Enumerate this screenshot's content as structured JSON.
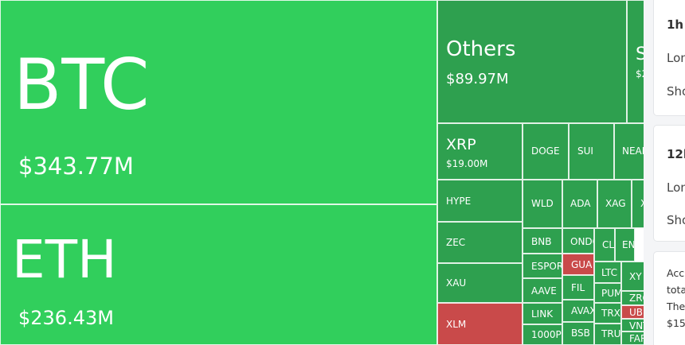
{
  "tiles": {
    "btc": {
      "symbol": "BTC",
      "value": "$343.77M"
    },
    "eth": {
      "symbol": "ETH",
      "value": "$236.43M"
    },
    "others": {
      "symbol": "Others",
      "value": "$89.97M"
    },
    "sol": {
      "symbol": "S",
      "value": "$2"
    },
    "xrp": {
      "symbol": "XRP",
      "value": "$19.00M"
    },
    "doge": {
      "symbol": "DOGE"
    },
    "sui": {
      "symbol": "SUI"
    },
    "near": {
      "symbol": "NEAR"
    },
    "hype": {
      "symbol": "HYPE"
    },
    "zec": {
      "symbol": "ZEC"
    },
    "xau": {
      "symbol": "XAU"
    },
    "xlm": {
      "symbol": "XLM"
    },
    "wld": {
      "symbol": "WLD"
    },
    "ada": {
      "symbol": "ADA"
    },
    "xag": {
      "symbol": "XAG"
    },
    "x_partial": {
      "symbol": "X"
    },
    "bnb": {
      "symbol": "BNB"
    },
    "ondo": {
      "symbol": "ONDO"
    },
    "cl": {
      "symbol": "CL"
    },
    "en": {
      "symbol": "EN"
    },
    "espor": {
      "symbol": "ESPOR"
    },
    "gua": {
      "symbol": "GUA"
    },
    "aave": {
      "symbol": "AAVE"
    },
    "fil": {
      "symbol": "FIL"
    },
    "ltc": {
      "symbol": "LTC"
    },
    "xy": {
      "symbol": "XY"
    },
    "pum": {
      "symbol": "PUM"
    },
    "zro": {
      "symbol": "ZRO"
    },
    "link": {
      "symbol": "LINK"
    },
    "avax": {
      "symbol": "AVAX"
    },
    "trx": {
      "symbol": "TRX"
    },
    "ub": {
      "symbol": "UB"
    },
    "vnt": {
      "symbol": "VNT"
    },
    "thousandpe": {
      "symbol": "1000PE"
    },
    "bsb": {
      "symbol": "BSB"
    },
    "tru": {
      "symbol": "TRU"
    },
    "far": {
      "symbol": "FAR"
    }
  },
  "sidebar": {
    "card1": {
      "title": "1h",
      "long": "Lon",
      "short": "Sho"
    },
    "card2": {
      "title": "12h",
      "long": "Lon",
      "short": "Sho"
    },
    "card3": {
      "line1": "Acc",
      "line2": "tota",
      "line3": "The",
      "line4": "$15"
    }
  },
  "colors": {
    "up_strong": "#31cf5c",
    "up": "#2ea04f",
    "down": "#c94a4a"
  }
}
